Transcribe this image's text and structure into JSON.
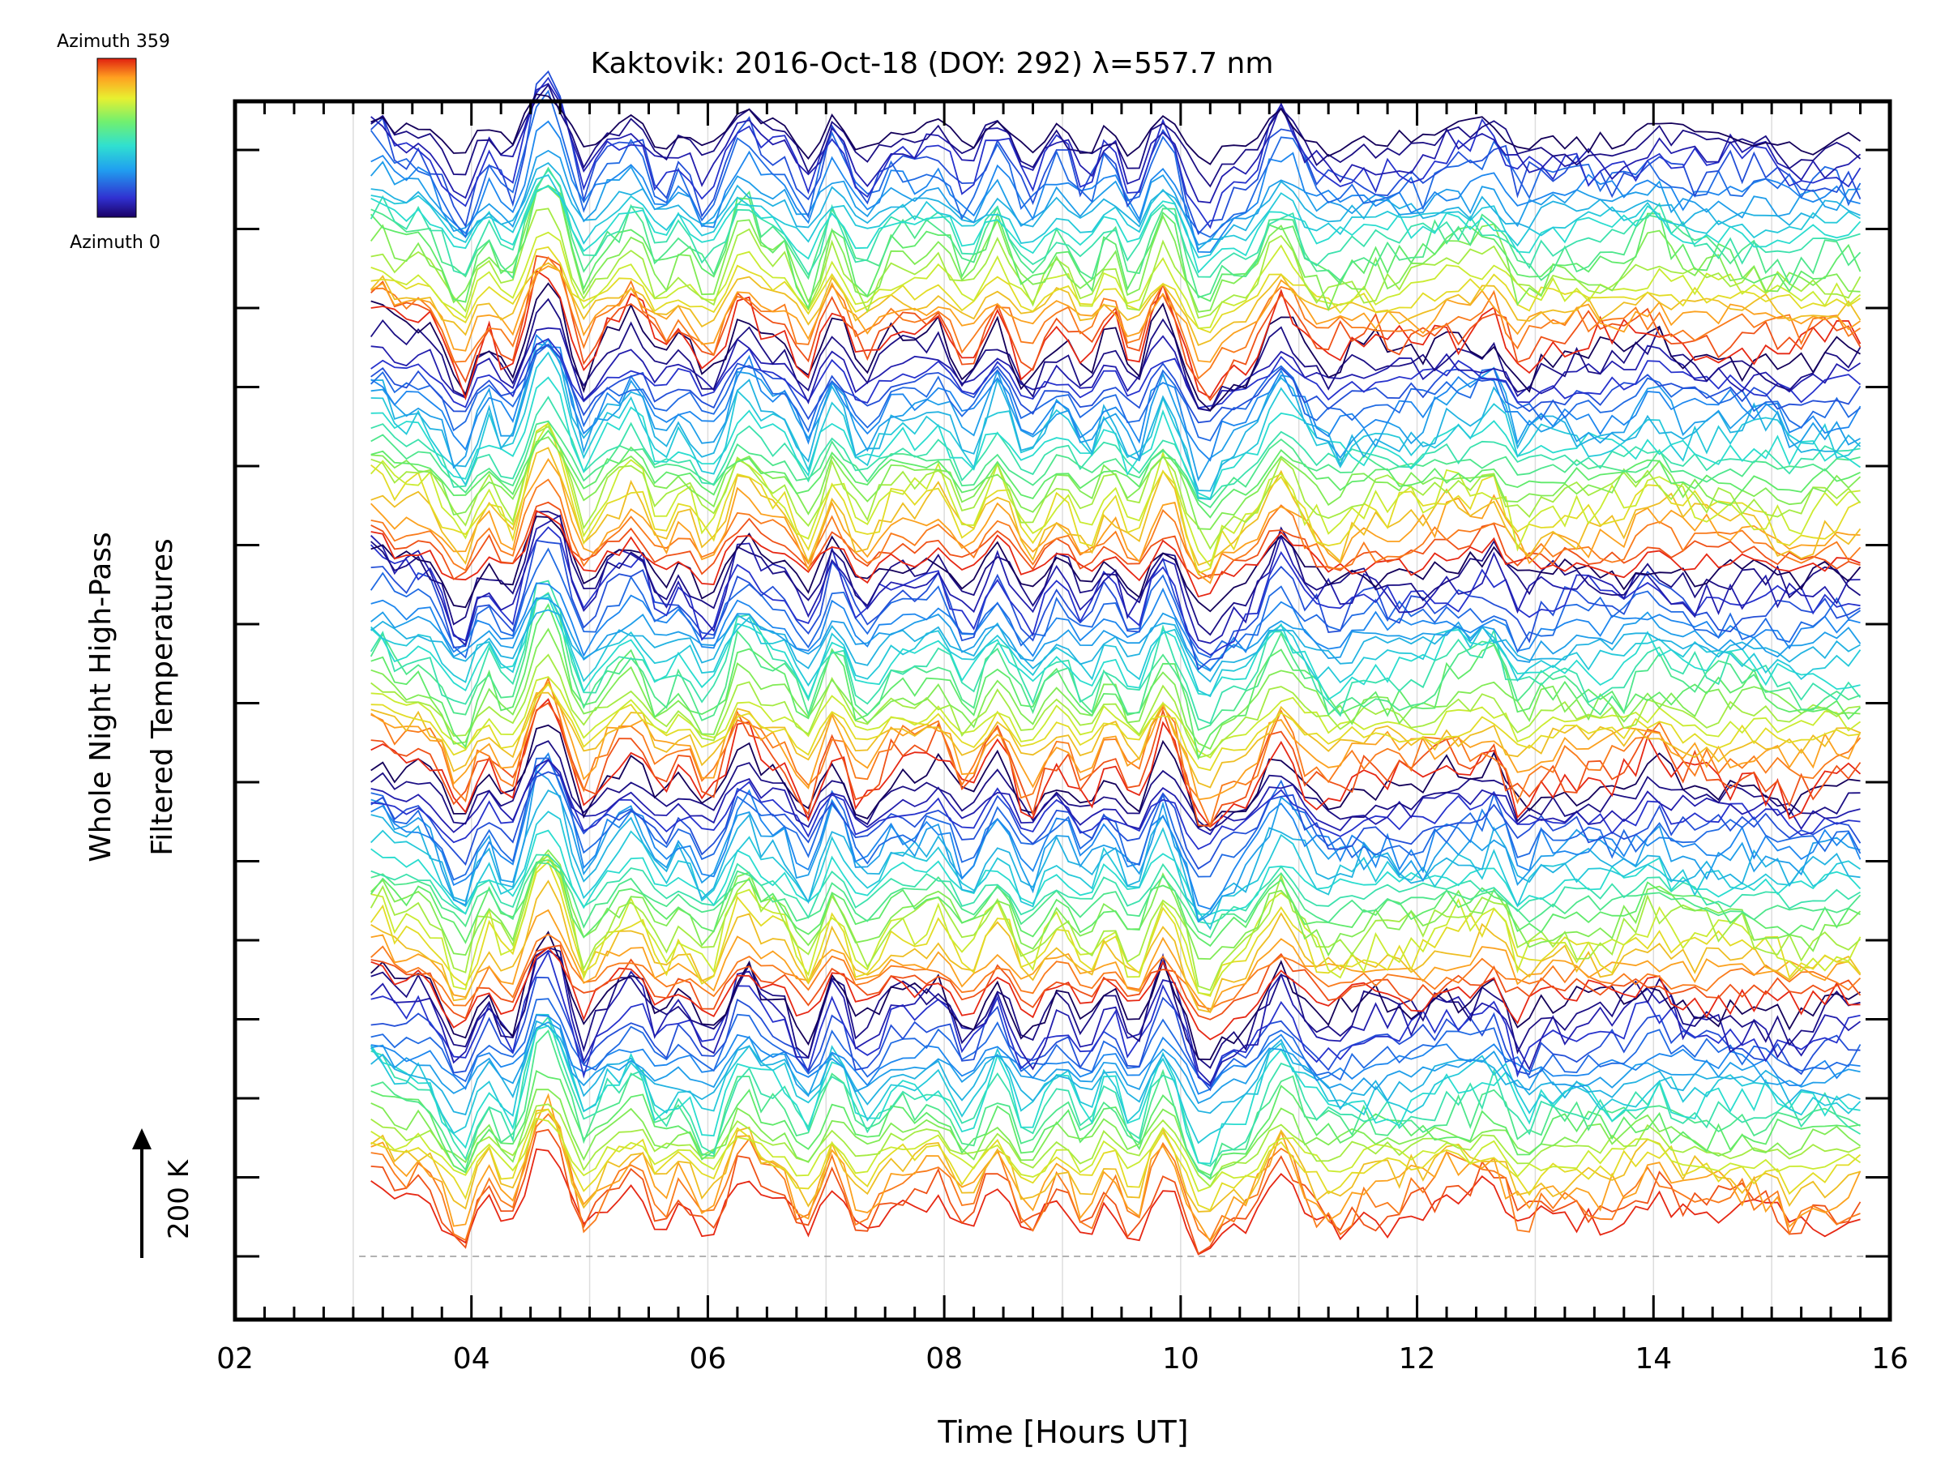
{
  "chart_data": {
    "type": "line",
    "title": "Kaktovik: 2016-Oct-18 (DOY: 292) λ=557.7 nm",
    "xlabel": "Time [Hours UT]",
    "ylabel_line1": "Whole Night High-Pass",
    "ylabel_line2": "Filtered Temperatures",
    "scale_label": "200 K",
    "xlim": [
      2,
      16
    ],
    "x_ticks": [
      2,
      4,
      6,
      8,
      10,
      12,
      14,
      16
    ],
    "x_tick_labels": [
      "02",
      "04",
      "06",
      "08",
      "10",
      "12",
      "14",
      "16"
    ],
    "y_major_ticks": 15,
    "vertical_gridlines": [
      3,
      4,
      5,
      6,
      7,
      8,
      9,
      10,
      11,
      12,
      13,
      14,
      15
    ],
    "baseline_dashed": true,
    "colorbar": {
      "top_label": "Azimuth 359",
      "bottom_label": "Azimuth 0",
      "colormap": "rainbow"
    },
    "series_summary": {
      "count": 115,
      "stacking": "each azimuth series offset upward; groups of ~23 series cycle through azimuth 0-359",
      "time_start": 3.15,
      "time_end": 15.8,
      "time_step_hours": 0.1
    },
    "common_features": {
      "description": "Common temperature perturbation times (hours UT) and relative amplitudes shared by all series",
      "peaks": [
        {
          "t": 3.2,
          "amp": 1.0
        },
        {
          "t": 3.55,
          "amp": 0.6
        },
        {
          "t": 4.1,
          "amp": 0.8
        },
        {
          "t": 4.55,
          "amp": 1.5
        },
        {
          "t": 4.75,
          "amp": 1.2
        },
        {
          "t": 5.1,
          "amp": 0.5
        },
        {
          "t": 5.4,
          "amp": 0.9
        },
        {
          "t": 5.75,
          "amp": 0.5
        },
        {
          "t": 6.3,
          "amp": 1.1
        },
        {
          "t": 6.65,
          "amp": 0.5
        },
        {
          "t": 7.05,
          "amp": 1.0
        },
        {
          "t": 7.6,
          "amp": 0.4
        },
        {
          "t": 7.95,
          "amp": 0.6
        },
        {
          "t": 8.45,
          "amp": 0.8
        },
        {
          "t": 9.0,
          "amp": 0.5
        },
        {
          "t": 9.4,
          "amp": 0.7
        },
        {
          "t": 9.85,
          "amp": 1.0
        },
        {
          "t": 10.85,
          "amp": 1.0
        },
        {
          "t": 12.3,
          "amp": 0.4
        },
        {
          "t": 12.65,
          "amp": 0.7
        },
        {
          "t": 14.0,
          "amp": 0.5
        }
      ],
      "troughs": [
        {
          "t": 3.95,
          "amp": 1.1
        },
        {
          "t": 4.35,
          "amp": 0.7
        },
        {
          "t": 4.95,
          "amp": 0.9
        },
        {
          "t": 5.6,
          "amp": 0.6
        },
        {
          "t": 6.0,
          "amp": 0.6
        },
        {
          "t": 6.85,
          "amp": 0.9
        },
        {
          "t": 7.3,
          "amp": 0.5
        },
        {
          "t": 8.2,
          "amp": 0.5
        },
        {
          "t": 8.7,
          "amp": 0.6
        },
        {
          "t": 9.2,
          "amp": 0.6
        },
        {
          "t": 9.6,
          "amp": 0.7
        },
        {
          "t": 10.2,
          "amp": 1.2
        },
        {
          "t": 10.5,
          "amp": 0.4
        },
        {
          "t": 11.3,
          "amp": 0.3
        },
        {
          "t": 12.85,
          "amp": 0.5
        },
        {
          "t": 15.2,
          "amp": 0.3
        }
      ]
    }
  }
}
